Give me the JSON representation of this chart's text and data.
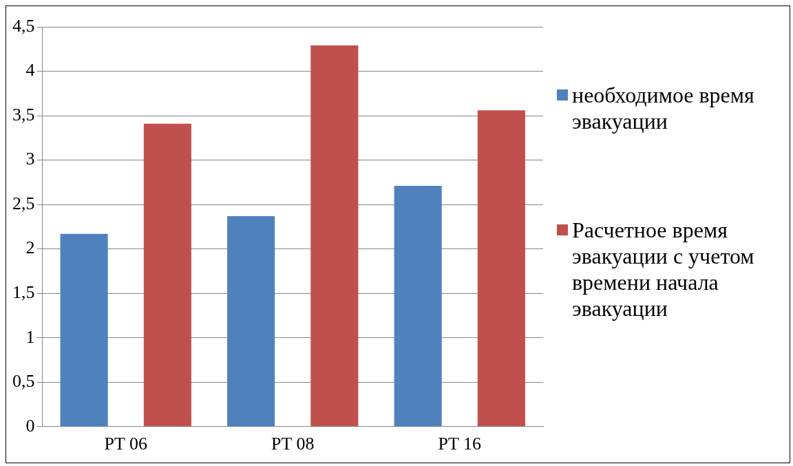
{
  "chart_data": {
    "type": "bar",
    "categories": [
      "PT 06",
      "PT 08",
      "PT 16"
    ],
    "series": [
      {
        "name": "необходимое время эвакуации",
        "color": "#4f81bd",
        "values": [
          2.17,
          2.37,
          2.71
        ]
      },
      {
        "name": "Расчетное время эвакуации с учетом времени начала эвакуации",
        "color": "#c0504d",
        "values": [
          3.41,
          4.29,
          3.56
        ]
      }
    ],
    "ylim": [
      0,
      4.5
    ],
    "yticks": [
      0,
      {
        "value": 0.5,
        "label": "0,5"
      },
      1,
      {
        "value": 1.5,
        "label": "1,5"
      },
      2,
      {
        "value": 2.5,
        "label": "2,5"
      },
      3,
      {
        "value": 3.5,
        "label": "3,5"
      },
      4,
      {
        "value": 4.5,
        "label": "4,5"
      }
    ],
    "grid": "y",
    "legend": "right"
  }
}
